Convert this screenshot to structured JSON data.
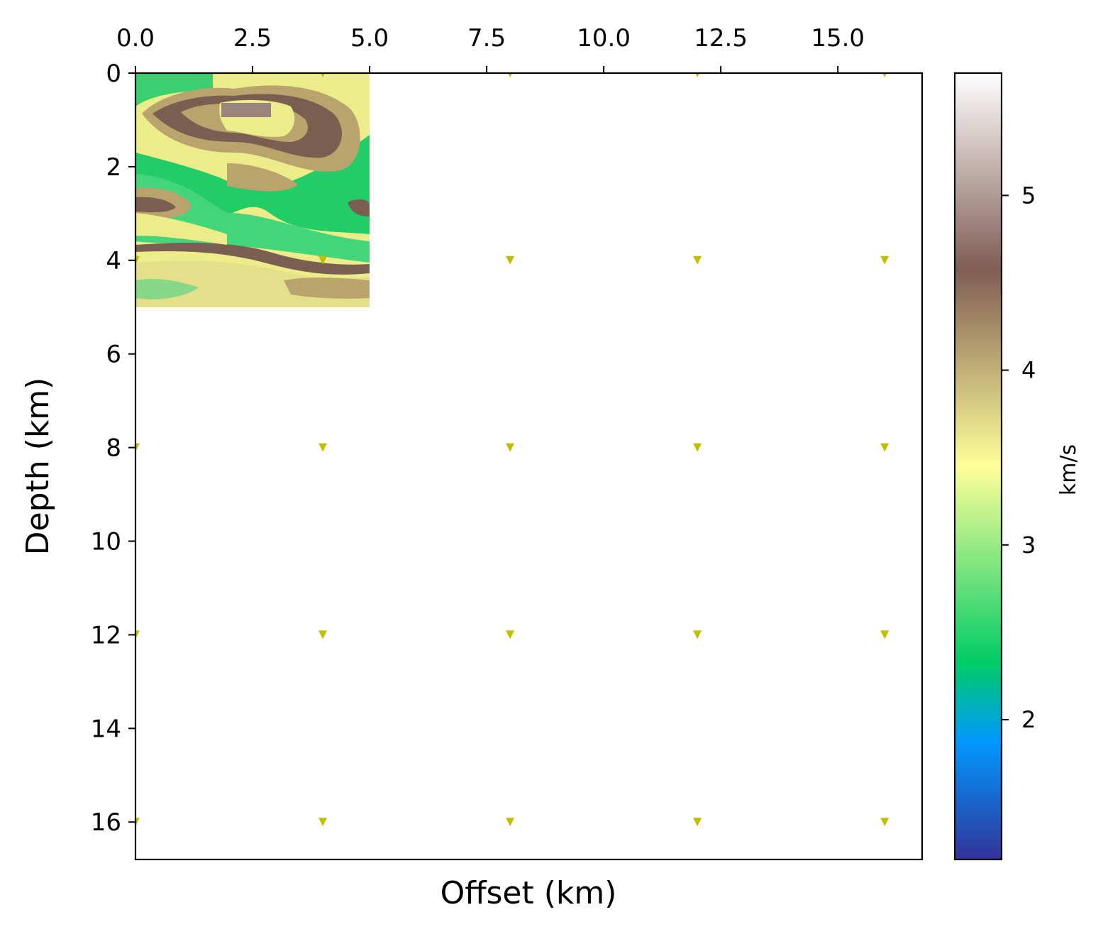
{
  "chart_data": {
    "type": "heatmap",
    "title": "",
    "xlabel": "Offset (km)",
    "ylabel": "Depth (km)",
    "xlim": [
      0,
      16.8
    ],
    "ylim": [
      16.8,
      0
    ],
    "x_ticks": [
      0.0,
      2.5,
      5.0,
      7.5,
      10.0,
      12.5,
      15.0
    ],
    "x_tick_labels": [
      "0.0",
      "2.5",
      "5.0",
      "7.5",
      "10.0",
      "12.5",
      "15.0"
    ],
    "x_axis_position": "top",
    "y_ticks": [
      0,
      2,
      4,
      6,
      8,
      10,
      12,
      14,
      16
    ],
    "y_tick_labels": [
      "0",
      "2",
      "4",
      "6",
      "8",
      "10",
      "12",
      "14",
      "16"
    ],
    "velocity_model_extent": {
      "x": [
        0,
        5
      ],
      "depth": [
        0,
        5
      ]
    },
    "colorbar": {
      "label": "km/s",
      "range": [
        1.2,
        5.7
      ],
      "ticks": [
        2,
        3,
        4,
        5
      ],
      "tick_labels": [
        "2",
        "3",
        "4",
        "5"
      ],
      "colormap": "terrain"
    },
    "receiver_marker_color": "#bfbf00",
    "receivers": [
      {
        "x": 0,
        "z": 0
      },
      {
        "x": 4,
        "z": 0
      },
      {
        "x": 8,
        "z": 0
      },
      {
        "x": 12,
        "z": 0
      },
      {
        "x": 16,
        "z": 0
      },
      {
        "x": 0,
        "z": 4
      },
      {
        "x": 4,
        "z": 4
      },
      {
        "x": 8,
        "z": 4
      },
      {
        "x": 12,
        "z": 4
      },
      {
        "x": 16,
        "z": 4
      },
      {
        "x": 0,
        "z": 8
      },
      {
        "x": 4,
        "z": 8
      },
      {
        "x": 8,
        "z": 8
      },
      {
        "x": 12,
        "z": 8
      },
      {
        "x": 16,
        "z": 8
      },
      {
        "x": 0,
        "z": 12
      },
      {
        "x": 4,
        "z": 12
      },
      {
        "x": 8,
        "z": 12
      },
      {
        "x": 12,
        "z": 12
      },
      {
        "x": 16,
        "z": 12
      },
      {
        "x": 0,
        "z": 16
      },
      {
        "x": 4,
        "z": 16
      },
      {
        "x": 8,
        "z": 16
      },
      {
        "x": 12,
        "z": 16
      },
      {
        "x": 16,
        "z": 16
      }
    ]
  }
}
